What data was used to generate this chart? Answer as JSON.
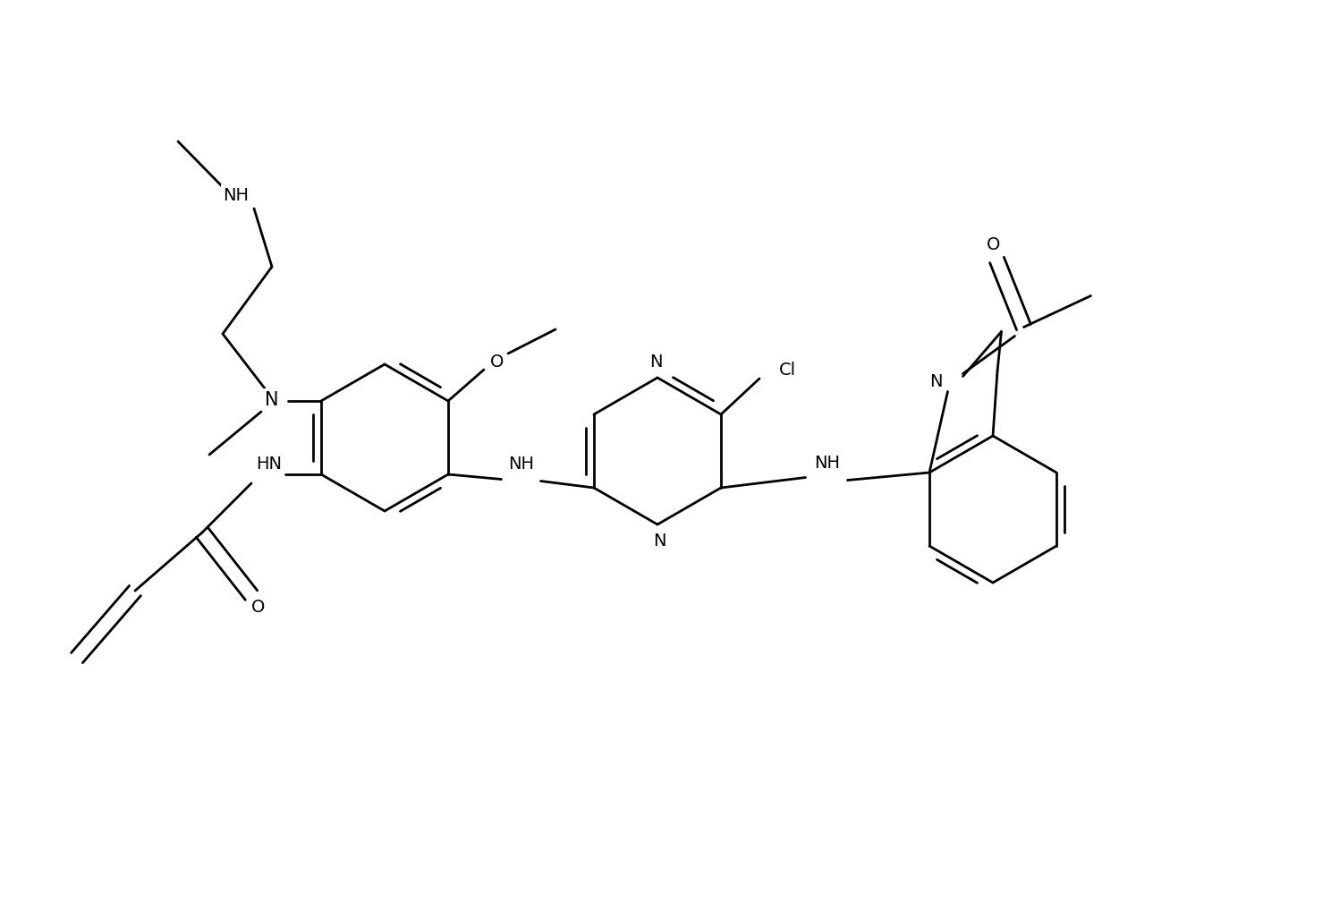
{
  "background_color": "#ffffff",
  "line_width": 2.0,
  "font_size": 14,
  "figsize": [
    14.88,
    10.2
  ],
  "dpi": 100,
  "xlim": [
    0,
    14.88
  ],
  "ylim": [
    0,
    10.2
  ]
}
